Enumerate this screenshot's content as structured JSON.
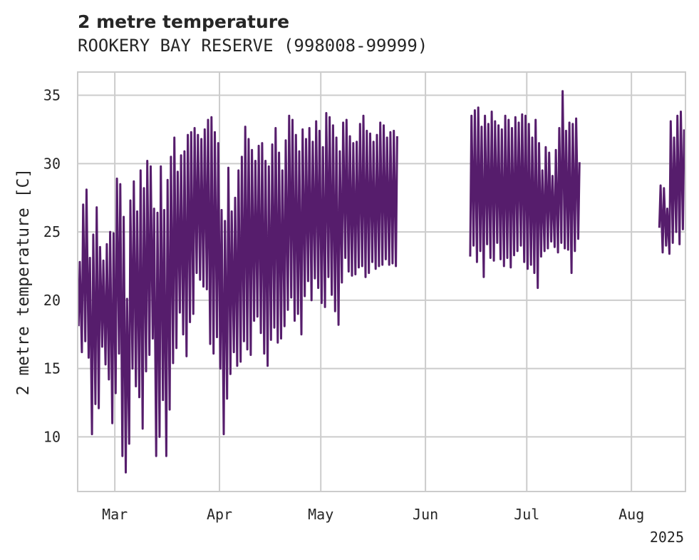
{
  "chart_data": {
    "type": "line",
    "title": "2 metre temperature",
    "subtitle": "ROOKERY BAY RESERVE (998008-99999)",
    "xlabel": "",
    "ylabel": "2 metre temperature [C]",
    "x_year_label": "2025",
    "x_range": [
      "2025-02-18",
      "2025-08-17"
    ],
    "ylim": [
      6,
      36.7
    ],
    "y_ticks": [
      10,
      15,
      20,
      25,
      30,
      35
    ],
    "x_ticks": [
      {
        "date": "2025-03-01",
        "label": "Mar"
      },
      {
        "date": "2025-04-01",
        "label": "Apr"
      },
      {
        "date": "2025-05-01",
        "label": "May"
      },
      {
        "date": "2025-06-01",
        "label": "Jun"
      },
      {
        "date": "2025-07-01",
        "label": "Jul"
      },
      {
        "date": "2025-08-01",
        "label": "Aug"
      }
    ],
    "grid": true,
    "series": [
      {
        "line_color": "#561d6c",
        "segments": [
          {
            "x": [
              "2025-02-18",
              "2025-02-19",
              "2025-02-20",
              "2025-02-21",
              "2025-02-22",
              "2025-02-23",
              "2025-02-24",
              "2025-02-25",
              "2025-02-26",
              "2025-02-27",
              "2025-02-28",
              "2025-03-01",
              "2025-03-02",
              "2025-03-03",
              "2025-03-04",
              "2025-03-05",
              "2025-03-06",
              "2025-03-07",
              "2025-03-08",
              "2025-03-09",
              "2025-03-10",
              "2025-03-11",
              "2025-03-12",
              "2025-03-13",
              "2025-03-14",
              "2025-03-15",
              "2025-03-16",
              "2025-03-17",
              "2025-03-18",
              "2025-03-19",
              "2025-03-20",
              "2025-03-21",
              "2025-03-22",
              "2025-03-23",
              "2025-03-24",
              "2025-03-25",
              "2025-03-26",
              "2025-03-27",
              "2025-03-28",
              "2025-03-29",
              "2025-03-30",
              "2025-03-31",
              "2025-04-01",
              "2025-04-02",
              "2025-04-03",
              "2025-04-04",
              "2025-04-05",
              "2025-04-06",
              "2025-04-07",
              "2025-04-08",
              "2025-04-09",
              "2025-04-10",
              "2025-04-11",
              "2025-04-12",
              "2025-04-13",
              "2025-04-14",
              "2025-04-15",
              "2025-04-16",
              "2025-04-17",
              "2025-04-18",
              "2025-04-19",
              "2025-04-20",
              "2025-04-21",
              "2025-04-22",
              "2025-04-23",
              "2025-04-24",
              "2025-04-25",
              "2025-04-26",
              "2025-04-27",
              "2025-04-28",
              "2025-04-29",
              "2025-04-30",
              "2025-05-01",
              "2025-05-02",
              "2025-05-03",
              "2025-05-04",
              "2025-05-05",
              "2025-05-06",
              "2025-05-07",
              "2025-05-08",
              "2025-05-09",
              "2025-05-10",
              "2025-05-11",
              "2025-05-12",
              "2025-05-13",
              "2025-05-14",
              "2025-05-15",
              "2025-05-16",
              "2025-05-17",
              "2025-05-18",
              "2025-05-19",
              "2025-05-20",
              "2025-05-21",
              "2025-05-22",
              "2025-05-23"
            ],
            "min": [
              18.1,
              16.2,
              17.0,
              15.8,
              10.2,
              12.4,
              12.1,
              16.6,
              15.3,
              14.2,
              11.0,
              13.2,
              16.1,
              8.6,
              7.4,
              9.5,
              15.0,
              13.7,
              12.9,
              10.6,
              14.8,
              16.0,
              17.2,
              8.6,
              10.0,
              12.7,
              8.6,
              12.0,
              15.4,
              16.5,
              19.1,
              17.5,
              15.9,
              18.4,
              19.0,
              22.0,
              21.5,
              21.0,
              20.8,
              16.8,
              16.1,
              17.3,
              15.0,
              10.2,
              12.8,
              14.6,
              16.2,
              15.2,
              15.5,
              17.0,
              16.4,
              16.0,
              18.5,
              18.8,
              17.6,
              16.1,
              15.2,
              17.1,
              18.0,
              16.9,
              17.2,
              18.1,
              19.3,
              20.2,
              18.5,
              19.0,
              17.5,
              20.3,
              21.4,
              20.0,
              21.6,
              20.9,
              19.8,
              19.5,
              21.7,
              20.4,
              19.2,
              18.2,
              21.3,
              23.1,
              22.1,
              21.8,
              21.9,
              22.4,
              22.5,
              21.7,
              22.0,
              22.8,
              22.3,
              22.5,
              22.6,
              23.0,
              22.6,
              22.7,
              22.5
            ],
            "max": [
              22.8,
              27.0,
              28.1,
              23.1,
              24.8,
              26.8,
              23.9,
              22.9,
              24.1,
              25.0,
              24.9,
              28.9,
              28.5,
              26.1,
              20.1,
              27.3,
              28.7,
              26.5,
              29.5,
              28.2,
              30.2,
              29.8,
              26.7,
              26.4,
              29.8,
              26.6,
              28.8,
              30.5,
              31.9,
              29.4,
              30.6,
              30.9,
              32.1,
              32.3,
              32.6,
              32.1,
              31.8,
              32.5,
              33.2,
              33.4,
              32.3,
              31.5,
              26.6,
              25.8,
              29.7,
              26.5,
              27.5,
              29.5,
              30.5,
              32.7,
              31.8,
              31.0,
              30.2,
              31.3,
              31.5,
              30.2,
              29.8,
              31.4,
              32.6,
              30.8,
              29.5,
              31.7,
              33.5,
              33.2,
              32.1,
              30.9,
              32.5,
              31.8,
              32.6,
              31.6,
              33.1,
              32.4,
              31.2,
              33.7,
              33.4,
              32.8,
              31.9,
              30.9,
              33.0,
              33.2,
              32.0,
              31.5,
              31.6,
              32.9,
              33.5,
              32.4,
              32.2,
              31.6,
              32.1,
              33.0,
              32.8,
              31.9,
              32.3,
              32.4,
              32.0
            ]
          },
          {
            "x": [
              "2025-06-14",
              "2025-06-15",
              "2025-06-16",
              "2025-06-17",
              "2025-06-18",
              "2025-06-19",
              "2025-06-20",
              "2025-06-21",
              "2025-06-22",
              "2025-06-23",
              "2025-06-24",
              "2025-06-25",
              "2025-06-26",
              "2025-06-27",
              "2025-06-28",
              "2025-06-29",
              "2025-06-30",
              "2025-07-01",
              "2025-07-02",
              "2025-07-03",
              "2025-07-04",
              "2025-07-05",
              "2025-07-06",
              "2025-07-07",
              "2025-07-08",
              "2025-07-09",
              "2025-07-10",
              "2025-07-11",
              "2025-07-12",
              "2025-07-13",
              "2025-07-14",
              "2025-07-15",
              "2025-07-16"
            ],
            "min": [
              23.2,
              24.0,
              22.8,
              23.6,
              21.7,
              24.1,
              23.1,
              22.9,
              24.2,
              23.0,
              22.5,
              23.1,
              22.4,
              23.3,
              23.6,
              24.0,
              22.8,
              22.3,
              22.6,
              22.0,
              20.9,
              23.2,
              23.6,
              23.8,
              24.3,
              23.9,
              23.5,
              24.2,
              23.8,
              23.7,
              22.0,
              23.6,
              24.5
            ],
            "max": [
              33.5,
              33.9,
              34.1,
              32.7,
              33.5,
              32.9,
              33.8,
              33.1,
              32.8,
              32.5,
              33.5,
              33.2,
              32.6,
              33.4,
              33.0,
              33.6,
              33.5,
              32.9,
              31.9,
              33.2,
              31.5,
              29.5,
              31.2,
              30.8,
              29.1,
              31.0,
              32.6,
              35.3,
              32.4,
              33.0,
              32.9,
              33.3,
              30.1
            ]
          },
          {
            "x": [
              "2025-08-09",
              "2025-08-10",
              "2025-08-11",
              "2025-08-12",
              "2025-08-13",
              "2025-08-14",
              "2025-08-15",
              "2025-08-16"
            ],
            "min": [
              25.3,
              23.5,
              24.0,
              23.4,
              24.2,
              25.0,
              24.1,
              25.2
            ],
            "max": [
              28.4,
              28.2,
              26.7,
              33.1,
              31.9,
              33.5,
              33.8,
              32.5
            ]
          }
        ]
      }
    ]
  }
}
